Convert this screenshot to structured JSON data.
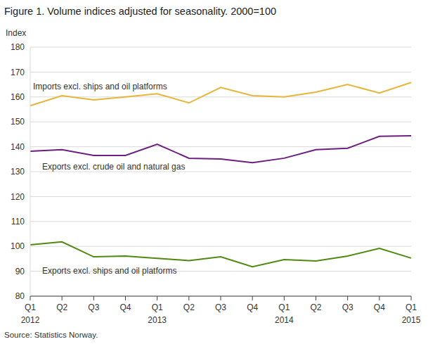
{
  "chart_data": {
    "type": "line",
    "title": "Figure 1. Volume indices adjusted for seasonality. 2000=100",
    "y_label": "Index",
    "annotations": [
      "Source: Statistics Norway."
    ],
    "categories": [
      "Q1 2012",
      "Q2",
      "Q3",
      "Q4",
      "Q1 2013",
      "Q2",
      "Q3",
      "Q4",
      "Q1 2014",
      "Q2",
      "Q3",
      "Q4",
      "Q1 2015"
    ],
    "series": [
      {
        "name": "Imports excl. ships and oil platforms",
        "color": "#e8b53b",
        "values": [
          156.5,
          160.5,
          158.8,
          160.0,
          161.3,
          157.6,
          163.8,
          160.5,
          160.0,
          161.9,
          165.0,
          161.6,
          165.8
        ]
      },
      {
        "name": "Exports excl. crude oil and natural gas",
        "color": "#6d1f80",
        "values": [
          138.2,
          138.8,
          136.5,
          136.5,
          141.0,
          135.4,
          135.1,
          133.6,
          135.4,
          138.8,
          139.4,
          144.2,
          144.4
        ]
      },
      {
        "name": "Exports excl. ships and oil platforms",
        "color": "#4f8a10",
        "values": [
          100.6,
          101.8,
          95.8,
          96.1,
          95.2,
          94.3,
          95.8,
          91.8,
          94.7,
          94.1,
          96.1,
          99.2,
          95.3
        ]
      }
    ],
    "ylim": [
      80,
      180
    ],
    "yticks": [
      80,
      90,
      100,
      110,
      120,
      130,
      140,
      150,
      160,
      170,
      180
    ],
    "grid": true
  }
}
